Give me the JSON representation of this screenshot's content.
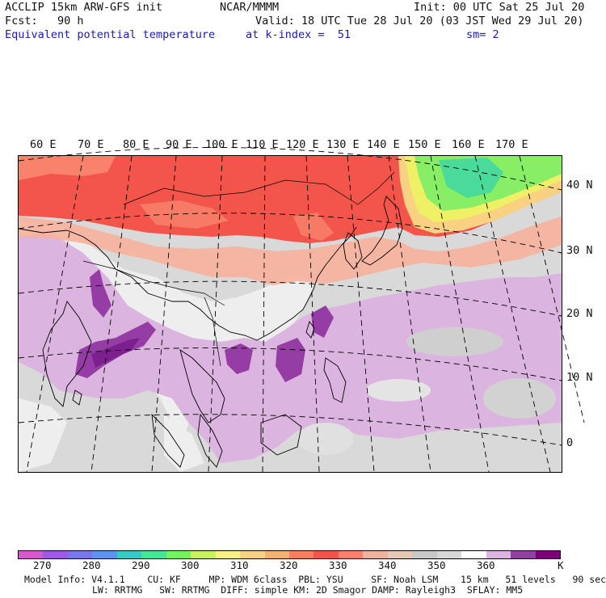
{
  "header": {
    "model": "ACCLIP 15km ARW-GFS init",
    "org": "NCAR/MMMM",
    "init": "Init: 00 UTC Sat 25 Jul 20",
    "fcst": "Fcst:   90 h",
    "valid": "Valid: 18 UTC Tue 28 Jul 20 (03 JST Wed 29 Jul 20)",
    "field": "Equivalent potential temperature",
    "level": "at k-index =  51",
    "smooth": "sm= 2"
  },
  "map": {
    "lon_labels": [
      "60 E",
      "70 E",
      "80 E",
      "90 E",
      "100 E",
      "110 E",
      "120 E",
      "130 E",
      "140 E",
      "150 E",
      "160 E",
      "170 E"
    ],
    "lat_labels": [
      "40 N",
      "30 N",
      "20 N",
      "10 N",
      "0"
    ],
    "colors": {
      "ocean_base": "#d9d9d9",
      "land_light": "#eeeeee",
      "warm_red": "#f4554a",
      "warm_orange": "#f8836a",
      "salmon": "#f7b09c",
      "green": "#88ee66",
      "teal": "#44d8a0",
      "yellow": "#f0f066",
      "lilac": "#dcb4e0",
      "purple": "#b060c0",
      "deep_purple": "#7d1f8f",
      "coast": "#000000",
      "grid": "#000000"
    }
  },
  "colorbar": {
    "colors": [
      "#d25ad2",
      "#a05ae0",
      "#7a78e6",
      "#5a96ec",
      "#3cc8c8",
      "#48e496",
      "#78f064",
      "#c8f064",
      "#f8f08c",
      "#f8d282",
      "#f7b06e",
      "#f7825a",
      "#f4554a",
      "#f8826a",
      "#f4b09c",
      "#e6c8b4",
      "#c8c8c8",
      "#d7d7d7",
      "#ffffff",
      "#dcb4e0",
      "#963ca5",
      "#78007d"
    ],
    "labels": [
      "270",
      "280",
      "290",
      "300",
      "310",
      "320",
      "330",
      "340",
      "350",
      "360"
    ],
    "unit": "K"
  },
  "footer": {
    "line1": "Model Info: V4.1.1    CU: KF     MP: WDM 6class  PBL: YSU     SF: Noah LSM    15 km   51 levels   90 sec",
    "line2": "LW: RRTMG   SW: RRTMG  DIFF: simple KM: 2D Smagor DAMP: Rayleigh3  SFLAY: MM5"
  }
}
